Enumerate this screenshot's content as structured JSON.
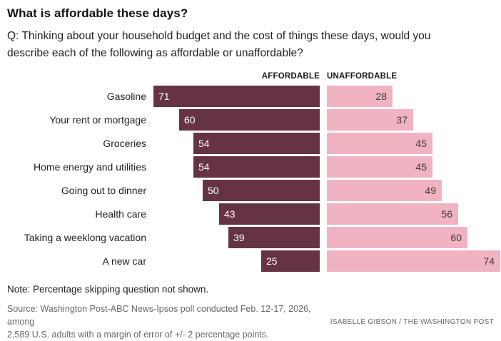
{
  "title": "What is affordable these days?",
  "question": {
    "lines": [
      "Q: Thinking about your household budget and the cost of things these days, would you",
      "describe each of the following as affordable or unaffordable?"
    ]
  },
  "headers": {
    "affordable": "AFFORDABLE",
    "unaffordable": "UNAFFORDABLE"
  },
  "chart_data": {
    "type": "bar",
    "variant": "diverging-horizontal",
    "categories": [
      "Gasoline",
      "Your rent or mortgage",
      "Groceries",
      "Home energy and utilities",
      "Going out to dinner",
      "Health care",
      "Taking a weeklong vacation",
      "A new car"
    ],
    "series": [
      {
        "name": "AFFORDABLE",
        "values": [
          71,
          60,
          54,
          54,
          50,
          43,
          39,
          25
        ],
        "color": "#663344",
        "label_color": "#ffffff",
        "alignment": "bars grow left from center axis, value label inside left end"
      },
      {
        "name": "UNAFFORDABLE",
        "values": [
          28,
          37,
          45,
          45,
          49,
          56,
          60,
          74
        ],
        "color": "#f1b3c1",
        "label_color": "#3d3d3d",
        "alignment": "bars grow right from center axis, value label inside right end"
      }
    ],
    "value_unit": "percent",
    "xlim": [
      0,
      74
    ],
    "grid": false,
    "legend_position": "column headers above bars"
  },
  "note": "Note: Percentage skipping question not shown.",
  "source": {
    "lines": [
      "Source: Washington Post-ABC News-Ipsos poll conducted Feb. 12-17, 2026, among",
      "2,589 U.S. adults with a margin of error of +/- 2 percentage points."
    ]
  },
  "credit": "ISABELLE GIBSON / THE WASHINGTON POST",
  "colors": {
    "affordable_bar": "#663344",
    "unaffordable_bar": "#f1b3c1",
    "affordable_value_text": "#ffffff",
    "unaffordable_value_text": "#3d3d3d",
    "title_text": "#111111",
    "body_text": "#222222",
    "muted_text": "#666666",
    "background": "#ffffff"
  }
}
